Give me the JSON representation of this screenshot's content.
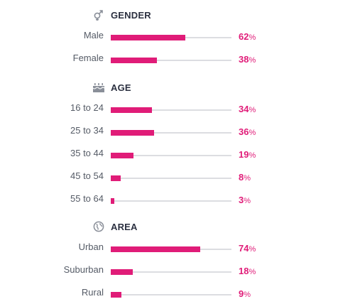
{
  "chart_data": {
    "type": "bar",
    "orientation": "horizontal",
    "xlim": [
      0,
      100
    ],
    "unit": "%",
    "colors": {
      "bar": "#e01c78",
      "track": "#dcdde1",
      "value_text": "#e01c78"
    },
    "groups": [
      {
        "key": "gender",
        "title": "GENDER",
        "icon": "gender-icon",
        "categories": [
          "Male",
          "Female"
        ],
        "values": [
          62,
          38
        ]
      },
      {
        "key": "age",
        "title": "AGE",
        "icon": "birthday-cake-icon",
        "categories": [
          "16 to 24",
          "25 to 34",
          "35 to 44",
          "45 to 54",
          "55 to 64"
        ],
        "values": [
          34,
          36,
          19,
          8,
          3
        ]
      },
      {
        "key": "area",
        "title": "AREA",
        "icon": "globe-icon",
        "categories": [
          "Urban",
          "Suburban",
          "Rural"
        ],
        "values": [
          74,
          18,
          9
        ]
      }
    ]
  }
}
